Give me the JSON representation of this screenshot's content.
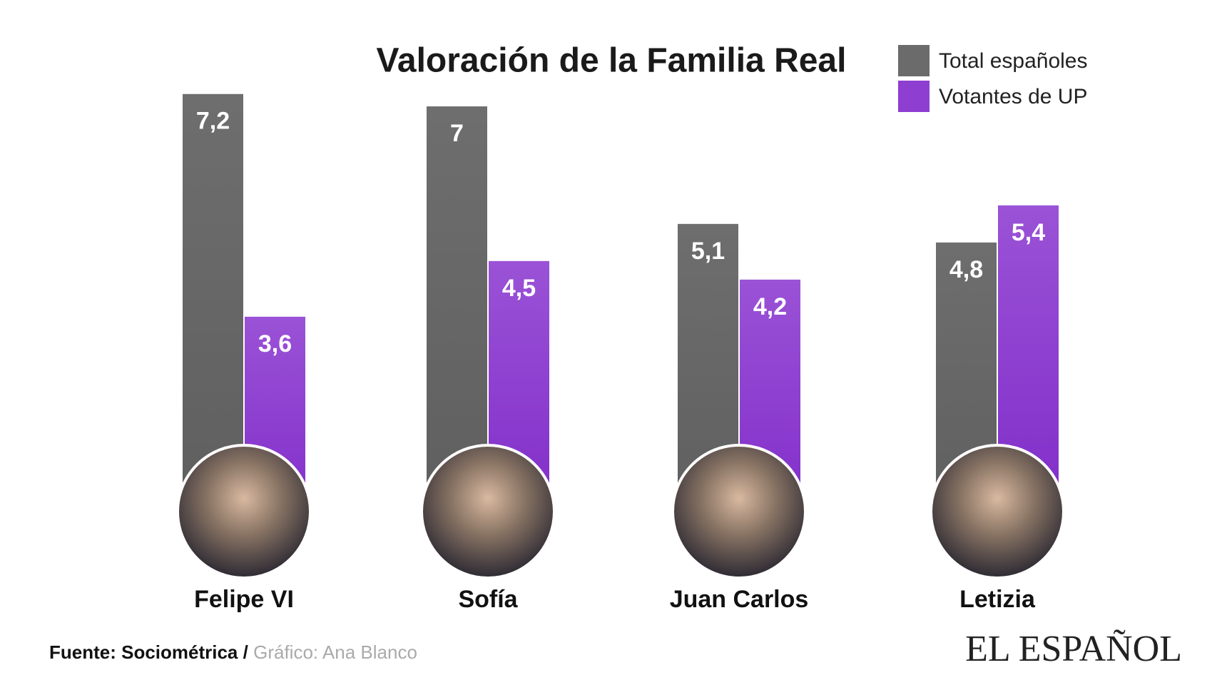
{
  "chart_data": {
    "type": "bar",
    "title": "Valoración de la Familia Real",
    "categories": [
      "Felipe VI",
      "Sofía",
      "Juan Carlos",
      "Letizia"
    ],
    "series": [
      {
        "name": "Total españoles",
        "color": "#6b6b6b",
        "values": [
          7.2,
          7,
          5.1,
          4.8
        ],
        "value_labels": [
          "7,2",
          "7",
          "5,1",
          "4,8"
        ]
      },
      {
        "name": "Votantes de UP",
        "color": "#8e3ed0",
        "values": [
          3.6,
          4.5,
          4.2,
          5.4
        ],
        "value_labels": [
          "3,6",
          "4,5",
          "4,2",
          "5,4"
        ]
      }
    ],
    "legend": "top-right"
  },
  "footer": {
    "source": "Fuente: Sociométrica",
    "separator": "/",
    "credit": "Gráfico: Ana Blanco",
    "brand": "EL ESPAÑOL"
  }
}
